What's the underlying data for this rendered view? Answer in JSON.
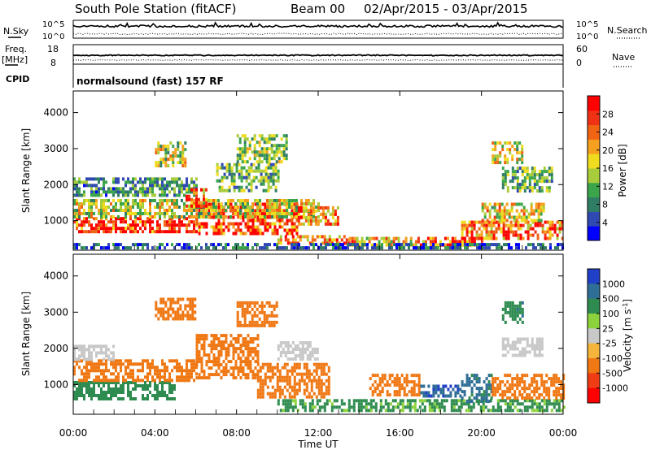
{
  "header": {
    "station": "South Pole Station (fitACF)",
    "beam": "Beam 00",
    "date_range": "02/Apr/2015 - 03/Apr/2015"
  },
  "noise_panel": {
    "left_label": "N.Sky",
    "right_label": "N.Search",
    "left_ticks": [
      "10^5",
      "10^0"
    ],
    "right_ticks": [
      "10^5",
      "10^0"
    ]
  },
  "freq_panel": {
    "left_label_1": "Freq.",
    "left_label_2": "[MHz]",
    "right_label": "Nave",
    "left_ticks": [
      "18",
      "8"
    ],
    "right_ticks": [
      "60",
      "0"
    ]
  },
  "cpid_panel": {
    "label": "CPID",
    "mode": "normalsound (fast) 157 RF"
  },
  "chart_data": [
    {
      "type": "heatmap",
      "name": "power",
      "ylabel": "Slant Range [km]",
      "ylim": [
        180,
        4600
      ],
      "yticks": [
        1000,
        2000,
        3000,
        4000
      ],
      "xlim": [
        0,
        24
      ],
      "colorbar": {
        "label": "Power [dB]",
        "range": [
          0,
          32
        ],
        "ticks": [
          4,
          8,
          12,
          16,
          20,
          24,
          28
        ],
        "colors": [
          "#0000ff",
          "#2f48b2",
          "#2f7d64",
          "#3aa54a",
          "#a8cc3a",
          "#f0dc1e",
          "#f5a01e",
          "#f06414",
          "#f03214",
          "#ff0000"
        ]
      },
      "regions": [
        {
          "x0": 0.0,
          "x1": 6.0,
          "y0": 700,
          "y1": 1100,
          "v": 28
        },
        {
          "x0": 6.0,
          "x1": 11.0,
          "y0": 650,
          "y1": 1500,
          "v": 27
        },
        {
          "x0": 0.0,
          "x1": 12.0,
          "y0": 1100,
          "y1": 1600,
          "v": 16
        },
        {
          "x0": 11.0,
          "x1": 13.0,
          "y0": 900,
          "y1": 1400,
          "v": 22
        },
        {
          "x0": 10.0,
          "x1": 13.5,
          "y0": 400,
          "y1": 600,
          "v": 23
        },
        {
          "x0": 13.5,
          "x1": 16.5,
          "y0": 350,
          "y1": 550,
          "v": 20
        },
        {
          "x0": 16.5,
          "x1": 20.0,
          "y0": 350,
          "y1": 550,
          "v": 26
        },
        {
          "x0": 19.0,
          "x1": 24.0,
          "y0": 500,
          "y1": 1000,
          "v": 24
        },
        {
          "x0": 20.0,
          "x1": 23.0,
          "y0": 1000,
          "y1": 1500,
          "v": 18
        },
        {
          "x0": 0.0,
          "x1": 6.0,
          "y0": 1700,
          "y1": 2200,
          "v": 9
        },
        {
          "x0": 7.0,
          "x1": 10.0,
          "y0": 1800,
          "y1": 2600,
          "v": 12
        },
        {
          "x0": 8.0,
          "x1": 10.5,
          "y0": 2600,
          "y1": 3400,
          "v": 14
        },
        {
          "x0": 4.0,
          "x1": 5.5,
          "y0": 2500,
          "y1": 3200,
          "v": 16
        },
        {
          "x0": 21.0,
          "x1": 23.5,
          "y0": 1800,
          "y1": 2500,
          "v": 12
        },
        {
          "x0": 20.5,
          "x1": 22.0,
          "y0": 2600,
          "y1": 3200,
          "v": 17
        },
        {
          "x0": 0.0,
          "x1": 24.0,
          "y0": 200,
          "y1": 380,
          "v": 6
        },
        {
          "x0": 5.5,
          "x1": 6.5,
          "y0": 1400,
          "y1": 1900,
          "v": 25
        }
      ]
    },
    {
      "type": "heatmap",
      "name": "velocity",
      "ylabel": "Slant Range [km]",
      "ylim": [
        180,
        4600
      ],
      "yticks": [
        1000,
        2000,
        3000,
        4000
      ],
      "xlim": [
        0,
        24
      ],
      "xlabel": "Time UT",
      "xticks": [
        "00:00",
        "04:00",
        "08:00",
        "12:00",
        "16:00",
        "20:00",
        "00:00"
      ],
      "colorbar": {
        "label": "Velocity [m s^-1]",
        "ticks": [
          "1000",
          "500",
          "100",
          "25",
          "-25",
          "-100",
          "-500",
          "-1000"
        ],
        "colors": [
          "#2040c8",
          "#2f6e96",
          "#2f8c50",
          "#8cd23c",
          "#c8c8c8",
          "#f5b43c",
          "#f07814",
          "#f03c14",
          "#ff0000"
        ]
      },
      "regions": [
        {
          "x0": 0.0,
          "x1": 5.0,
          "y0": 600,
          "y1": 1100,
          "v": 150
        },
        {
          "x0": 0.0,
          "x1": 6.0,
          "y0": 1100,
          "y1": 1700,
          "v": -150
        },
        {
          "x0": 6.0,
          "x1": 9.0,
          "y0": 1200,
          "y1": 2400,
          "v": -350
        },
        {
          "x0": 9.0,
          "x1": 12.5,
          "y0": 700,
          "y1": 1600,
          "v": -200
        },
        {
          "x0": 4.0,
          "x1": 6.0,
          "y0": 2800,
          "y1": 3400,
          "v": -200
        },
        {
          "x0": 8.0,
          "x1": 10.0,
          "y0": 2600,
          "y1": 3300,
          "v": -150
        },
        {
          "x0": 10.0,
          "x1": 24.0,
          "y0": 300,
          "y1": 600,
          "v": 120
        },
        {
          "x0": 14.5,
          "x1": 17.0,
          "y0": 700,
          "y1": 1300,
          "v": -180
        },
        {
          "x0": 17.0,
          "x1": 19.0,
          "y0": 700,
          "y1": 1000,
          "v": 900
        },
        {
          "x0": 19.0,
          "x1": 20.5,
          "y0": 500,
          "y1": 1300,
          "v": 600
        },
        {
          "x0": 20.5,
          "x1": 24.0,
          "y0": 600,
          "y1": 1300,
          "v": -180
        },
        {
          "x0": 21.0,
          "x1": 23.0,
          "y0": 1800,
          "y1": 2300,
          "v": 0
        },
        {
          "x0": 21.0,
          "x1": 22.0,
          "y0": 2700,
          "y1": 3300,
          "v": 400
        },
        {
          "x0": 10.0,
          "x1": 12.0,
          "y0": 1700,
          "y1": 2200,
          "v": 0
        },
        {
          "x0": 0.0,
          "x1": 2.0,
          "y0": 1700,
          "y1": 2100,
          "v": 0
        }
      ]
    }
  ]
}
